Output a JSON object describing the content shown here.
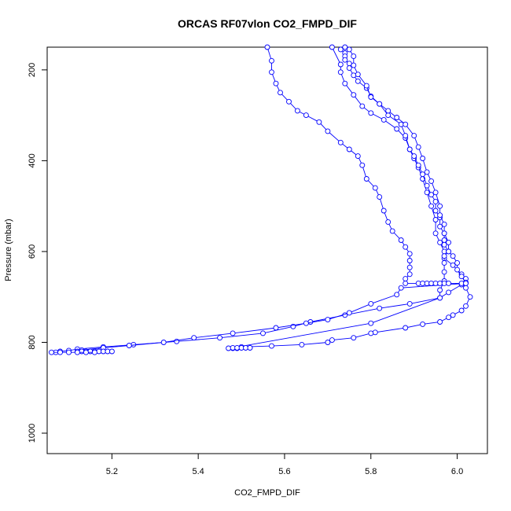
{
  "chart_data": {
    "type": "line",
    "title": "ORCAS RF07vlon CO2_FMPD_DIF",
    "xlabel": "CO2_FMPD_DIF",
    "ylabel": "Pressure (mbar)",
    "xlim": [
      5.05,
      6.07
    ],
    "ylim": [
      1045,
      150
    ],
    "y_reversed": true,
    "grid": false,
    "legend": "none",
    "x_ticks": [
      5.2,
      5.4,
      5.6,
      5.8,
      6.0
    ],
    "x_tick_labels": [
      "5.2",
      "5.4",
      "5.6",
      "5.8",
      "6.0"
    ],
    "y_ticks": [
      200,
      400,
      600,
      800,
      1000
    ],
    "y_tick_labels": [
      "200",
      "400",
      "600",
      "800",
      "1000"
    ],
    "series_color": "#0000ff",
    "series": [
      {
        "points": [
          [
            5.71,
            150
          ],
          [
            5.73,
            188
          ],
          [
            5.73,
            205
          ],
          [
            5.74,
            230
          ],
          [
            5.76,
            255
          ],
          [
            5.78,
            280
          ],
          [
            5.8,
            295
          ],
          [
            5.83,
            310
          ],
          [
            5.86,
            330
          ],
          [
            5.88,
            350
          ],
          [
            5.89,
            375
          ],
          [
            5.9,
            395
          ],
          [
            5.91,
            415
          ],
          [
            5.92,
            440
          ],
          [
            5.93,
            470
          ],
          [
            5.94,
            500
          ],
          [
            5.95,
            530
          ],
          [
            5.95,
            560
          ],
          [
            5.96,
            580
          ],
          [
            5.97,
            600
          ],
          [
            5.97,
            615
          ],
          [
            5.99,
            630
          ],
          [
            6.01,
            650
          ],
          [
            6.02,
            660
          ],
          [
            6.02,
            670
          ],
          [
            6.02,
            680
          ],
          [
            6.03,
            700
          ],
          [
            6.02,
            720
          ],
          [
            6.01,
            730
          ],
          [
            5.99,
            740
          ],
          [
            5.98,
            745
          ],
          [
            5.96,
            755
          ],
          [
            5.92,
            760
          ],
          [
            5.88,
            768
          ],
          [
            5.81,
            778
          ],
          [
            5.8,
            780
          ],
          [
            5.76,
            790
          ],
          [
            5.71,
            795
          ],
          [
            5.7,
            800
          ],
          [
            5.64,
            805
          ],
          [
            5.57,
            808
          ],
          [
            5.5,
            810
          ],
          [
            5.52,
            812
          ],
          [
            5.51,
            812
          ],
          [
            5.5,
            812
          ],
          [
            5.49,
            813
          ],
          [
            5.48,
            813
          ],
          [
            5.47,
            813
          ]
        ]
      },
      {
        "points": [
          [
            5.73,
            155
          ],
          [
            5.74,
            163
          ],
          [
            5.74,
            170
          ],
          [
            5.74,
            178
          ],
          [
            5.75,
            186
          ],
          [
            5.75,
            196
          ],
          [
            5.76,
            212
          ],
          [
            5.77,
            225
          ],
          [
            5.79,
            240
          ],
          [
            5.8,
            258
          ],
          [
            5.82,
            275
          ],
          [
            5.84,
            300
          ],
          [
            5.87,
            320
          ],
          [
            5.88,
            345
          ],
          [
            5.89,
            375
          ],
          [
            5.9,
            390
          ],
          [
            5.91,
            410
          ],
          [
            5.92,
            430
          ],
          [
            5.93,
            455
          ],
          [
            5.94,
            475
          ],
          [
            5.95,
            490
          ],
          [
            5.95,
            510
          ],
          [
            5.96,
            525
          ],
          [
            5.96,
            545
          ],
          [
            5.97,
            560
          ],
          [
            5.97,
            575
          ],
          [
            5.97,
            585
          ],
          [
            5.98,
            600
          ],
          [
            5.97,
            610
          ],
          [
            5.97,
            625
          ],
          [
            5.97,
            645
          ],
          [
            5.97,
            665
          ],
          [
            5.96,
            685
          ],
          [
            5.96,
            702
          ],
          [
            5.8,
            758
          ],
          [
            5.48,
            812
          ],
          [
            5.49,
            812
          ],
          [
            5.5,
            812
          ],
          [
            5.51,
            812
          ],
          [
            5.52,
            812
          ]
        ]
      },
      {
        "points": [
          [
            5.74,
            150
          ],
          [
            5.75,
            155
          ],
          [
            5.76,
            170
          ],
          [
            5.76,
            190
          ],
          [
            5.77,
            210
          ],
          [
            5.79,
            235
          ],
          [
            5.8,
            260
          ],
          [
            5.82,
            275
          ],
          [
            5.84,
            290
          ],
          [
            5.86,
            305
          ],
          [
            5.88,
            320
          ],
          [
            5.9,
            345
          ],
          [
            5.91,
            370
          ],
          [
            5.92,
            395
          ],
          [
            5.93,
            425
          ],
          [
            5.94,
            445
          ],
          [
            5.95,
            470
          ],
          [
            5.96,
            500
          ],
          [
            5.96,
            520
          ],
          [
            5.97,
            540
          ],
          [
            5.97,
            560
          ],
          [
            5.98,
            580
          ],
          [
            5.98,
            600
          ],
          [
            5.99,
            610
          ],
          [
            6.0,
            625
          ],
          [
            6.0,
            640
          ],
          [
            6.01,
            655
          ],
          [
            6.02,
            668
          ],
          [
            6.01,
            673
          ],
          [
            5.98,
            690
          ],
          [
            5.96,
            702
          ],
          [
            5.89,
            715
          ],
          [
            5.82,
            725
          ],
          [
            5.74,
            740
          ],
          [
            5.66,
            755
          ],
          [
            5.62,
            765
          ],
          [
            5.55,
            780
          ],
          [
            5.45,
            790
          ],
          [
            5.35,
            798
          ],
          [
            5.25,
            805
          ],
          [
            5.18,
            810
          ],
          [
            5.12,
            815
          ],
          [
            5.1,
            818
          ],
          [
            5.08,
            820
          ],
          [
            5.07,
            822
          ]
        ]
      },
      {
        "points": [
          [
            5.56,
            150
          ],
          [
            5.57,
            180
          ],
          [
            5.57,
            205
          ],
          [
            5.58,
            230
          ],
          [
            5.59,
            250
          ],
          [
            5.61,
            270
          ],
          [
            5.63,
            290
          ],
          [
            5.65,
            300
          ],
          [
            5.68,
            315
          ],
          [
            5.7,
            335
          ],
          [
            5.73,
            360
          ],
          [
            5.75,
            375
          ],
          [
            5.77,
            390
          ],
          [
            5.78,
            410
          ],
          [
            5.79,
            440
          ],
          [
            5.81,
            460
          ],
          [
            5.82,
            480
          ],
          [
            5.83,
            510
          ],
          [
            5.84,
            535
          ],
          [
            5.85,
            555
          ],
          [
            5.87,
            575
          ],
          [
            5.88,
            590
          ],
          [
            5.89,
            605
          ],
          [
            5.89,
            620
          ],
          [
            5.89,
            635
          ],
          [
            5.89,
            650
          ],
          [
            5.88,
            660
          ],
          [
            5.88,
            670
          ],
          [
            5.91,
            670
          ],
          [
            5.92,
            670
          ],
          [
            5.93,
            670
          ],
          [
            5.94,
            670
          ],
          [
            5.95,
            670
          ],
          [
            5.96,
            670
          ],
          [
            5.97,
            670
          ],
          [
            5.98,
            670
          ],
          [
            6.01,
            670
          ],
          [
            6.02,
            670
          ],
          [
            5.87,
            680
          ],
          [
            5.86,
            695
          ],
          [
            5.8,
            715
          ],
          [
            5.75,
            735
          ],
          [
            5.7,
            750
          ],
          [
            5.65,
            758
          ],
          [
            5.58,
            768
          ],
          [
            5.48,
            780
          ],
          [
            5.39,
            790
          ],
          [
            5.32,
            800
          ],
          [
            5.24,
            807
          ],
          [
            5.18,
            812
          ],
          [
            5.13,
            817
          ],
          [
            5.12,
            820
          ],
          [
            5.13,
            820
          ],
          [
            5.14,
            820
          ],
          [
            5.15,
            820
          ],
          [
            5.16,
            820
          ],
          [
            5.17,
            820
          ],
          [
            5.18,
            820
          ],
          [
            5.19,
            820
          ],
          [
            5.2,
            820
          ]
        ]
      },
      {
        "points": [
          [
            5.06,
            822
          ],
          [
            5.08,
            822
          ],
          [
            5.1,
            822
          ],
          [
            5.12,
            822
          ],
          [
            5.14,
            822
          ],
          [
            5.16,
            822
          ]
        ]
      }
    ]
  }
}
